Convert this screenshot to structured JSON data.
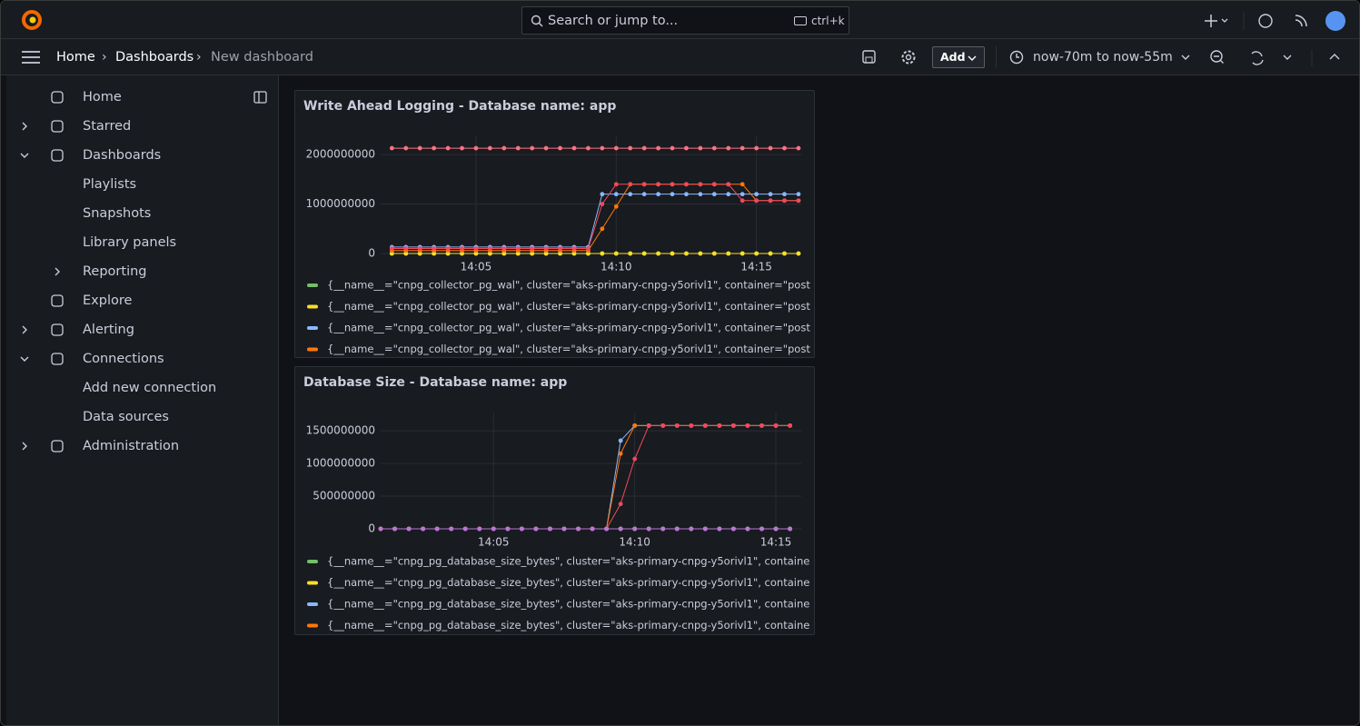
{
  "topbar": {
    "search_placeholder": "Search or jump to...",
    "shortcut": "ctrl+k"
  },
  "breadcrumb": [
    "Home",
    "Dashboards",
    "New dashboard"
  ],
  "toolbar": {
    "add_button": "Add",
    "time_range": "now-70m to now-55m"
  },
  "nav": [
    {
      "label": "Home"
    },
    {
      "label": "Starred",
      "expanded": false
    },
    {
      "label": "Dashboards",
      "expanded": true,
      "children": [
        {
          "label": "Playlists"
        },
        {
          "label": "Snapshots"
        },
        {
          "label": "Library panels"
        },
        {
          "label": "Reporting",
          "expanded": false
        }
      ]
    },
    {
      "label": "Explore"
    },
    {
      "label": "Alerting",
      "expanded": false
    },
    {
      "label": "Connections",
      "expanded": true,
      "children": [
        {
          "label": "Add new connection"
        },
        {
          "label": "Data sources"
        }
      ]
    },
    {
      "label": "Administration",
      "expanded": false
    }
  ],
  "chart_data": [
    {
      "type": "line",
      "title": "Write Ahead Logging - Database name: app",
      "x": [
        842,
        842.5,
        843,
        843.5,
        844,
        844.5,
        845,
        845.5,
        846,
        846.5,
        847,
        847.5,
        848,
        848.5,
        849,
        849.5,
        850,
        850.5,
        851,
        851.5,
        852,
        852.5,
        853,
        853.5,
        854,
        854.5,
        855,
        855.5,
        856,
        856.5
      ],
      "xlim": [
        841.6,
        856.6
      ],
      "xticks": [
        {
          "value": 845,
          "label": "14:05"
        },
        {
          "value": 850,
          "label": "14:10"
        },
        {
          "value": 855,
          "label": "14:15"
        }
      ],
      "ylim": [
        0,
        2370000000
      ],
      "yticks": [
        0,
        1000000000,
        2000000000
      ],
      "grid": true,
      "series": [
        {
          "name": "{__name__=\"cnpg_collector_pg_wal\", cluster=\"aks-primary-cnpg-y5orivl1\", container=\"post",
          "color": "#73bf69",
          "values": [
            0,
            0,
            0,
            0,
            0,
            0,
            0,
            0,
            0,
            0,
            0,
            0,
            0,
            0,
            0,
            0,
            0,
            0,
            0,
            0,
            0,
            0,
            0,
            0,
            0,
            0,
            0,
            0,
            0,
            0
          ]
        },
        {
          "name": "{__name__=\"cnpg_collector_pg_wal\", cluster=\"aks-primary-cnpg-y5orivl1\", container=\"post",
          "color": "#fade2a",
          "values": [
            0,
            0,
            0,
            0,
            0,
            0,
            0,
            0,
            0,
            0,
            0,
            0,
            0,
            0,
            0,
            0,
            0,
            0,
            0,
            0,
            0,
            0,
            0,
            0,
            0,
            0,
            0,
            0,
            0,
            0
          ]
        },
        {
          "name": "{__name__=\"cnpg_collector_pg_wal\", cluster=\"aks-primary-cnpg-y5orivl1\", container=\"post",
          "color": "#8ab8ff",
          "values": [
            130000000,
            130000000,
            130000000,
            130000000,
            130000000,
            130000000,
            130000000,
            130000000,
            130000000,
            130000000,
            130000000,
            130000000,
            130000000,
            130000000,
            130000000,
            1200000000,
            1200000000,
            1200000000,
            1200000000,
            1200000000,
            1200000000,
            1200000000,
            1200000000,
            1200000000,
            1200000000,
            1200000000,
            1200000000,
            1200000000,
            1200000000,
            1200000000
          ]
        },
        {
          "name": "{__name__=\"cnpg_collector_pg_wal\", cluster=\"aks-primary-cnpg-y5orivl1\", container=\"post",
          "color": "#ff780a",
          "values": [
            60000000,
            60000000,
            60000000,
            60000000,
            60000000,
            60000000,
            60000000,
            60000000,
            60000000,
            60000000,
            60000000,
            60000000,
            60000000,
            60000000,
            60000000,
            500000000,
            950000000,
            1400000000,
            1400000000,
            1400000000,
            1400000000,
            1400000000,
            1400000000,
            1400000000,
            1400000000,
            1400000000,
            1070000000,
            1070000000,
            1070000000,
            1070000000
          ]
        },
        {
          "color": "#ff7383",
          "values": [
            2130000000,
            2130000000,
            2130000000,
            2130000000,
            2130000000,
            2130000000,
            2130000000,
            2130000000,
            2130000000,
            2130000000,
            2130000000,
            2130000000,
            2130000000,
            2130000000,
            2130000000,
            2130000000,
            2130000000,
            2130000000,
            2130000000,
            2130000000,
            2130000000,
            2130000000,
            2130000000,
            2130000000,
            2130000000,
            2130000000,
            2130000000,
            2130000000,
            2130000000,
            2130000000
          ]
        },
        {
          "color": "#f2495c",
          "values": [
            100000000,
            100000000,
            100000000,
            100000000,
            100000000,
            100000000,
            100000000,
            100000000,
            100000000,
            100000000,
            100000000,
            100000000,
            100000000,
            100000000,
            100000000,
            1000000000,
            1400000000,
            1400000000,
            1400000000,
            1400000000,
            1400000000,
            1400000000,
            1400000000,
            1400000000,
            1400000000,
            1070000000,
            1070000000,
            1070000000,
            1070000000,
            1070000000
          ]
        }
      ]
    },
    {
      "type": "line",
      "title": "Database Size - Database name: app",
      "x": [
        841,
        841.5,
        842,
        842.5,
        843,
        843.5,
        844,
        844.5,
        845,
        845.5,
        846,
        846.5,
        847,
        847.5,
        848,
        848.5,
        849,
        849.5,
        850,
        850.5,
        851,
        851.5,
        852,
        852.5,
        853,
        853.5,
        854,
        854.5,
        855,
        855.5
      ],
      "xlim": [
        841,
        855.9
      ],
      "xticks": [
        {
          "value": 845,
          "label": "14:05"
        },
        {
          "value": 850,
          "label": "14:10"
        },
        {
          "value": 855,
          "label": "14:15"
        }
      ],
      "ylim": [
        0,
        1780000000
      ],
      "yticks": [
        0,
        500000000,
        1000000000,
        1500000000
      ],
      "grid": true,
      "series": [
        {
          "name": "{__name__=\"cnpg_pg_database_size_bytes\", cluster=\"aks-primary-cnpg-y5orivl1\", containe",
          "color": "#73bf69",
          "values": [
            0,
            0,
            0,
            0,
            0,
            0,
            0,
            0,
            0,
            0,
            0,
            0,
            0,
            0,
            0,
            0,
            0,
            0,
            0,
            0,
            0,
            0,
            0,
            0,
            0,
            0,
            0,
            0,
            0,
            0
          ]
        },
        {
          "name": "{__name__=\"cnpg_pg_database_size_bytes\", cluster=\"aks-primary-cnpg-y5orivl1\", containe",
          "color": "#fade2a",
          "values": [
            0,
            0,
            0,
            0,
            0,
            0,
            0,
            0,
            0,
            0,
            0,
            0,
            0,
            0,
            0,
            0,
            0,
            0,
            0,
            0,
            0,
            0,
            0,
            0,
            0,
            0,
            0,
            0,
            0,
            0
          ]
        },
        {
          "name": "{__name__=\"cnpg_pg_database_size_bytes\", cluster=\"aks-primary-cnpg-y5orivl1\", containe",
          "color": "#8ab8ff",
          "values": [
            0,
            0,
            0,
            0,
            0,
            0,
            0,
            0,
            0,
            0,
            0,
            0,
            0,
            0,
            0,
            0,
            0,
            1350000000,
            1580000000,
            1580000000,
            1580000000,
            1580000000,
            1580000000,
            1580000000,
            1580000000,
            1580000000,
            1580000000,
            1580000000,
            1580000000,
            1580000000
          ]
        },
        {
          "name": "{__name__=\"cnpg_pg_database_size_bytes\", cluster=\"aks-primary-cnpg-y5orivl1\", containe",
          "color": "#ff780a",
          "values": [
            0,
            0,
            0,
            0,
            0,
            0,
            0,
            0,
            0,
            0,
            0,
            0,
            0,
            0,
            0,
            0,
            0,
            1150000000,
            1580000000,
            1580000000,
            1580000000,
            1580000000,
            1580000000,
            1580000000,
            1580000000,
            1580000000,
            1580000000,
            1580000000,
            1580000000,
            1580000000
          ]
        },
        {
          "color": "#f2495c",
          "values": [
            0,
            0,
            0,
            0,
            0,
            0,
            0,
            0,
            0,
            0,
            0,
            0,
            0,
            0,
            0,
            0,
            0,
            380000000,
            1070000000,
            1580000000,
            1580000000,
            1580000000,
            1580000000,
            1580000000,
            1580000000,
            1580000000,
            1580000000,
            1580000000,
            1580000000,
            1580000000
          ]
        },
        {
          "color": "#b877d9",
          "values": [
            0,
            0,
            0,
            0,
            0,
            0,
            0,
            0,
            0,
            0,
            0,
            0,
            0,
            0,
            0,
            0,
            0,
            0,
            0,
            0,
            0,
            0,
            0,
            0,
            0,
            0,
            0,
            0,
            0,
            0
          ]
        }
      ]
    }
  ]
}
